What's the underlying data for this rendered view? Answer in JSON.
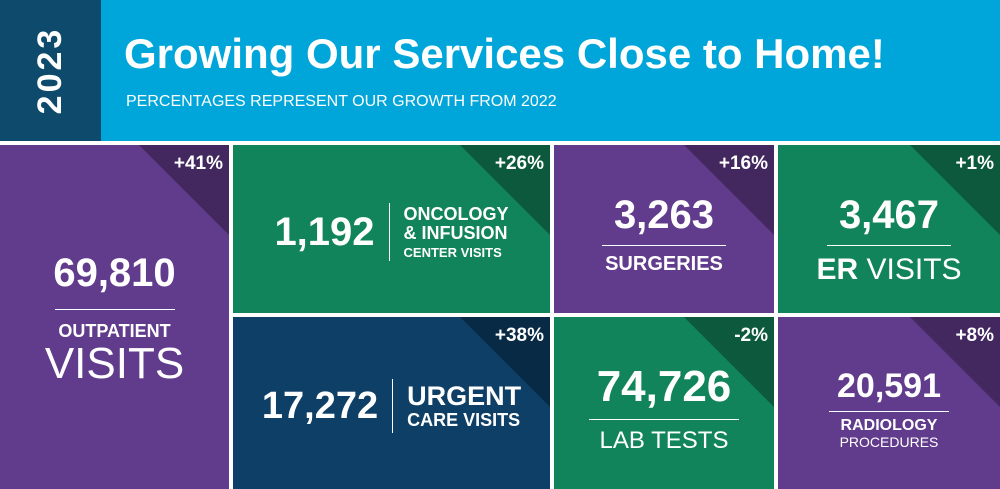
{
  "header": {
    "year": "2023",
    "title": "Growing Our Services Close to Home!",
    "subtitle": "PERCENTAGES REPRESENT OUR GROWTH FROM 2022"
  },
  "tiles": [
    {
      "growth": "+41%",
      "value": "69,810",
      "label": [
        "OUTPATIENT",
        "VISITS"
      ]
    },
    {
      "growth": "+26%",
      "value": "1,192",
      "label": [
        "ONCOLOGY",
        "& INFUSION",
        "CENTER VISITS"
      ]
    },
    {
      "growth": "+16%",
      "value": "3,263",
      "label": [
        "SURGERIES"
      ]
    },
    {
      "growth": "+1%",
      "value": "3,467",
      "label": [
        "ER",
        "VISITS"
      ]
    },
    {
      "growth": "+38%",
      "value": "17,272",
      "label": [
        "URGENT",
        "CARE VISITS"
      ]
    },
    {
      "growth": "-2%",
      "value": "74,726",
      "label": [
        "LAB TESTS"
      ]
    },
    {
      "growth": "+8%",
      "value": "20,591",
      "label": [
        "RADIOLOGY",
        "PROCEDURES"
      ]
    }
  ]
}
